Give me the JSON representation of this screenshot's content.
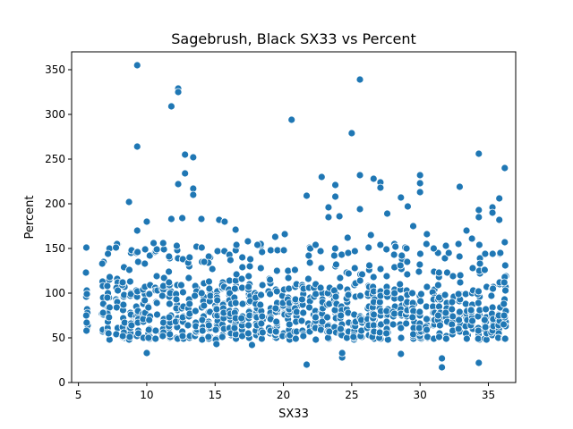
{
  "chart_data": {
    "type": "scatter",
    "title": "Sagebrush, Black SX33 vs Percent",
    "xlabel": "SX33",
    "ylabel": "Percent",
    "xlim": [
      4.5,
      37.0
    ],
    "ylim": [
      0,
      370
    ],
    "x_ticks": [
      5,
      10,
      15,
      20,
      25,
      30,
      35
    ],
    "y_ticks": [
      0,
      50,
      100,
      150,
      200,
      250,
      300,
      350
    ],
    "grid": false,
    "legend": "none",
    "colors": {
      "marker": "#1f77b4",
      "marker_edge": "#ffffff",
      "axis": "#000000"
    },
    "x_columns": [
      5.6,
      6.8,
      7.2,
      7.8,
      8.3,
      8.8,
      9.3,
      9.8,
      10.2,
      10.7,
      11.2,
      11.7,
      12.2,
      12.6,
      13.1,
      13.6,
      14.1,
      14.6,
      15.1,
      15.6,
      16.1,
      16.5,
      17.0,
      17.5,
      18.0,
      18.4,
      19.0,
      19.5,
      20.0,
      20.4,
      20.9,
      21.4,
      21.9,
      22.3,
      22.8,
      23.3,
      23.8,
      24.2,
      24.7,
      25.2,
      25.7,
      26.2,
      26.6,
      27.1,
      27.6,
      28.1,
      28.6,
      29.0,
      29.5,
      30.0,
      30.5,
      31.0,
      31.4,
      31.9,
      32.4,
      32.9,
      33.4,
      33.8,
      34.3,
      34.8,
      35.3,
      35.8,
      36.2
    ],
    "outliers": [
      [
        5.6,
        67
      ],
      [
        6.8,
        78
      ],
      [
        7.2,
        55
      ],
      [
        8.7,
        202
      ],
      [
        9.3,
        355
      ],
      [
        9.3,
        264
      ],
      [
        9.3,
        170
      ],
      [
        10.0,
        33
      ],
      [
        10.0,
        180
      ],
      [
        10.5,
        156
      ],
      [
        11.2,
        156
      ],
      [
        11.8,
        309
      ],
      [
        11.8,
        183
      ],
      [
        12.3,
        329
      ],
      [
        12.3,
        325
      ],
      [
        12.3,
        222
      ],
      [
        12.6,
        184
      ],
      [
        12.8,
        234
      ],
      [
        12.8,
        255
      ],
      [
        13.4,
        252
      ],
      [
        13.4,
        217
      ],
      [
        13.4,
        210
      ],
      [
        14.0,
        183
      ],
      [
        14.2,
        135
      ],
      [
        14.8,
        127
      ],
      [
        15.1,
        43
      ],
      [
        15.3,
        182
      ],
      [
        15.7,
        180
      ],
      [
        16.5,
        171
      ],
      [
        17.4,
        158
      ],
      [
        17.7,
        42
      ],
      [
        18.1,
        154
      ],
      [
        19.4,
        163
      ],
      [
        20.1,
        166
      ],
      [
        20.6,
        294
      ],
      [
        21.7,
        209
      ],
      [
        21.7,
        20
      ],
      [
        22.8,
        230
      ],
      [
        23.3,
        196
      ],
      [
        23.3,
        185
      ],
      [
        23.8,
        221
      ],
      [
        23.8,
        208
      ],
      [
        24.1,
        186
      ],
      [
        24.3,
        28
      ],
      [
        24.3,
        33
      ],
      [
        24.7,
        162
      ],
      [
        25.0,
        279
      ],
      [
        25.6,
        339
      ],
      [
        25.6,
        232
      ],
      [
        25.6,
        194
      ],
      [
        26.4,
        165
      ],
      [
        26.6,
        228
      ],
      [
        27.1,
        224
      ],
      [
        27.1,
        218
      ],
      [
        27.6,
        189
      ],
      [
        28.2,
        152
      ],
      [
        28.6,
        32
      ],
      [
        28.6,
        207
      ],
      [
        29.1,
        197
      ],
      [
        29.5,
        175
      ],
      [
        30.0,
        232
      ],
      [
        30.0,
        223
      ],
      [
        30.0,
        213
      ],
      [
        30.5,
        166
      ],
      [
        31.0,
        150
      ],
      [
        31.6,
        17
      ],
      [
        31.6,
        27
      ],
      [
        32.1,
        145
      ],
      [
        32.9,
        219
      ],
      [
        33.4,
        170
      ],
      [
        33.8,
        161
      ],
      [
        34.3,
        256
      ],
      [
        34.3,
        193
      ],
      [
        34.3,
        185
      ],
      [
        34.3,
        22
      ],
      [
        35.3,
        196
      ],
      [
        35.3,
        190
      ],
      [
        35.8,
        206
      ],
      [
        35.8,
        182
      ],
      [
        36.2,
        240
      ],
      [
        36.2,
        157
      ]
    ]
  }
}
